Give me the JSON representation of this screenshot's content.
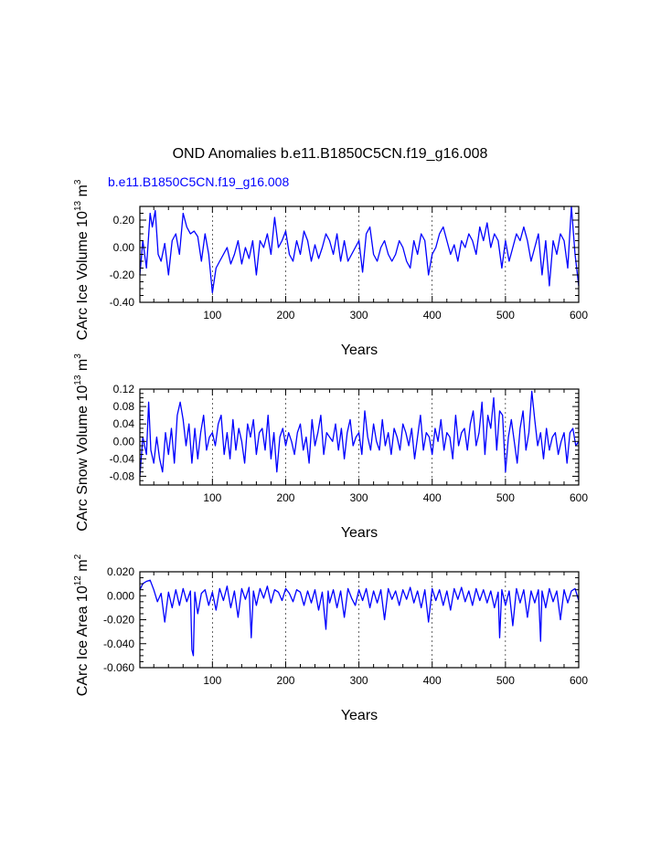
{
  "figure": {
    "title": "OND Anomalies b.e11.B1850C5CN.f19_g16.008",
    "legend_label": "b.e11.B1850C5CN.f19_g16.008",
    "series_color": "#0000ff"
  },
  "chart_data": [
    {
      "type": "line",
      "name": "ice-volume",
      "ylabel": "CArc Ice Volume 10^13 m^3",
      "ylabel_parts": {
        "base": "CArc Ice Volume 10",
        "exp1": "13",
        "mid": " m",
        "exp2": "3"
      },
      "xlabel": "Years",
      "xlim": [
        1,
        600
      ],
      "ylim": [
        -0.4,
        0.3
      ],
      "xticks": [
        100,
        200,
        300,
        400,
        500,
        600
      ],
      "xtick_labels": [
        "100",
        "200",
        "300",
        "400",
        "500",
        "600"
      ],
      "yticks": [
        -0.4,
        -0.2,
        0.0,
        0.2
      ],
      "ytick_labels": [
        "-0.40",
        "-0.20",
        "0.00",
        "0.20"
      ],
      "grid_x_dashed": true,
      "series": [
        {
          "name": "b.e11.B1850C5CN.f19_g16.008",
          "x": [
            1,
            5,
            10,
            15,
            18,
            22,
            26,
            30,
            35,
            40,
            45,
            50,
            55,
            60,
            65,
            70,
            75,
            80,
            85,
            90,
            95,
            100,
            105,
            110,
            115,
            120,
            125,
            130,
            135,
            140,
            145,
            150,
            155,
            160,
            165,
            170,
            175,
            180,
            185,
            190,
            195,
            200,
            205,
            210,
            215,
            220,
            225,
            230,
            235,
            240,
            245,
            250,
            255,
            260,
            265,
            270,
            275,
            280,
            285,
            290,
            295,
            300,
            305,
            310,
            315,
            320,
            325,
            330,
            335,
            340,
            345,
            350,
            355,
            360,
            365,
            370,
            375,
            380,
            385,
            390,
            395,
            400,
            405,
            410,
            415,
            420,
            425,
            430,
            435,
            440,
            445,
            450,
            455,
            460,
            465,
            470,
            475,
            480,
            485,
            490,
            495,
            500,
            505,
            510,
            515,
            520,
            525,
            530,
            535,
            540,
            545,
            550,
            555,
            560,
            565,
            570,
            575,
            580,
            585,
            590,
            595,
            600
          ],
          "values": [
            -0.2,
            0.05,
            -0.15,
            0.25,
            0.15,
            0.27,
            -0.05,
            -0.1,
            0.03,
            -0.2,
            0.05,
            0.1,
            -0.05,
            0.25,
            0.15,
            0.1,
            0.12,
            0.08,
            -0.1,
            0.1,
            -0.05,
            -0.33,
            -0.15,
            -0.1,
            -0.05,
            0.0,
            -0.12,
            -0.05,
            0.05,
            -0.12,
            0.0,
            -0.08,
            0.05,
            -0.2,
            0.05,
            0.0,
            0.1,
            -0.05,
            0.22,
            0.0,
            0.05,
            0.12,
            -0.05,
            -0.1,
            0.05,
            -0.05,
            0.12,
            0.05,
            -0.1,
            0.02,
            -0.08,
            0.0,
            0.1,
            0.05,
            -0.05,
            0.1,
            -0.1,
            0.05,
            -0.1,
            -0.05,
            0.0,
            0.05,
            -0.18,
            0.1,
            0.15,
            -0.05,
            -0.1,
            0.0,
            0.05,
            -0.05,
            -0.1,
            -0.05,
            0.05,
            0.0,
            -0.1,
            -0.15,
            0.05,
            -0.05,
            0.1,
            0.05,
            -0.2,
            -0.05,
            0.0,
            0.1,
            0.15,
            0.05,
            -0.05,
            0.02,
            -0.1,
            0.05,
            0.0,
            0.1,
            0.05,
            -0.05,
            0.15,
            0.05,
            0.18,
            0.0,
            0.1,
            0.05,
            -0.15,
            0.05,
            -0.1,
            0.0,
            0.1,
            0.05,
            0.15,
            0.05,
            -0.1,
            0.0,
            0.1,
            -0.2,
            0.05,
            -0.28,
            0.05,
            -0.05,
            0.1,
            0.05,
            -0.15,
            0.3,
            -0.05,
            -0.28
          ]
        }
      ]
    },
    {
      "type": "line",
      "name": "snow-volume",
      "ylabel": "CArc Snow Volume 10^13 m^3",
      "ylabel_parts": {
        "base": "CArc Snow Volume 10",
        "exp1": "13",
        "mid": " m",
        "exp2": "3"
      },
      "xlabel": "Years",
      "xlim": [
        1,
        600
      ],
      "ylim": [
        -0.1,
        0.12
      ],
      "xticks": [
        100,
        200,
        300,
        400,
        500,
        600
      ],
      "xtick_labels": [
        "100",
        "200",
        "300",
        "400",
        "500",
        "600"
      ],
      "yticks": [
        -0.08,
        -0.04,
        0.0,
        0.04,
        0.08,
        0.12
      ],
      "ytick_labels": [
        "-0.08",
        "-0.04",
        "0.00",
        "0.04",
        "0.08",
        "0.12"
      ],
      "grid_x_dashed": true,
      "series": [
        {
          "name": "b.e11.B1850C5CN.f19_g16.008",
          "x": [
            1,
            5,
            10,
            13,
            16,
            20,
            24,
            28,
            32,
            36,
            40,
            44,
            48,
            52,
            56,
            60,
            64,
            68,
            72,
            76,
            80,
            84,
            88,
            92,
            96,
            100,
            104,
            108,
            112,
            116,
            120,
            124,
            128,
            132,
            136,
            140,
            144,
            148,
            152,
            156,
            160,
            164,
            168,
            172,
            176,
            180,
            184,
            188,
            192,
            196,
            200,
            204,
            208,
            212,
            216,
            220,
            224,
            228,
            232,
            236,
            240,
            244,
            248,
            252,
            256,
            260,
            264,
            268,
            272,
            276,
            280,
            284,
            288,
            292,
            296,
            300,
            304,
            308,
            312,
            316,
            320,
            324,
            328,
            332,
            336,
            340,
            344,
            348,
            352,
            356,
            360,
            364,
            368,
            372,
            376,
            380,
            384,
            388,
            392,
            396,
            400,
            404,
            408,
            412,
            416,
            420,
            424,
            428,
            432,
            436,
            440,
            444,
            448,
            452,
            456,
            460,
            464,
            468,
            472,
            476,
            480,
            484,
            488,
            492,
            496,
            500,
            504,
            508,
            512,
            516,
            520,
            524,
            528,
            532,
            536,
            540,
            544,
            548,
            552,
            556,
            560,
            564,
            568,
            572,
            576,
            580,
            584,
            588,
            592,
            596,
            600
          ],
          "values": [
            -0.08,
            0.01,
            -0.03,
            0.09,
            -0.02,
            -0.05,
            0.01,
            -0.04,
            -0.07,
            0.02,
            -0.03,
            0.03,
            -0.05,
            0.06,
            0.09,
            0.05,
            -0.01,
            0.04,
            -0.05,
            0.03,
            -0.04,
            0.02,
            0.06,
            -0.02,
            0.01,
            0.02,
            -0.01,
            0.04,
            0.06,
            -0.03,
            0.02,
            -0.04,
            0.05,
            -0.02,
            0.03,
            0.0,
            -0.05,
            0.04,
            0.01,
            0.05,
            -0.03,
            0.02,
            0.03,
            -0.02,
            0.06,
            -0.04,
            0.02,
            -0.07,
            0.01,
            0.03,
            -0.01,
            0.02,
            0.0,
            -0.03,
            0.02,
            0.04,
            -0.02,
            0.01,
            -0.05,
            0.05,
            -0.01,
            0.02,
            0.06,
            -0.03,
            0.02,
            0.01,
            0.0,
            0.04,
            -0.02,
            0.03,
            -0.04,
            0.02,
            0.05,
            -0.01,
            0.01,
            0.02,
            -0.03,
            0.07,
            0.01,
            -0.02,
            0.04,
            0.0,
            -0.02,
            0.05,
            -0.01,
            0.02,
            -0.03,
            0.03,
            0.01,
            -0.02,
            0.04,
            0.02,
            -0.01,
            0.03,
            -0.04,
            0.01,
            0.06,
            -0.02,
            0.02,
            0.01,
            -0.03,
            0.03,
            0.0,
            0.05,
            -0.02,
            0.02,
            0.01,
            -0.04,
            0.06,
            -0.01,
            0.02,
            0.03,
            -0.02,
            0.04,
            0.07,
            -0.01,
            0.02,
            0.09,
            -0.03,
            0.06,
            0.03,
            0.1,
            -0.02,
            0.07,
            0.06,
            -0.07,
            0.01,
            0.05,
            0.0,
            -0.05,
            0.03,
            0.07,
            -0.02,
            0.02,
            0.115,
            0.05,
            -0.01,
            0.02,
            -0.04,
            0.03,
            -0.02,
            0.01,
            0.02,
            -0.03,
            0.0,
            0.02,
            -0.05,
            0.02,
            0.03,
            -0.01,
            0.0
          ]
        }
      ]
    },
    {
      "type": "line",
      "name": "ice-area",
      "ylabel": "CArc Ice Area 10^12 m^2",
      "ylabel_parts": {
        "base": "CArc Ice Area 10",
        "exp1": "12",
        "mid": " m",
        "exp2": "2"
      },
      "xlabel": "Years",
      "xlim": [
        1,
        600
      ],
      "ylim": [
        -0.06,
        0.02
      ],
      "xticks": [
        100,
        200,
        300,
        400,
        500,
        600
      ],
      "xtick_labels": [
        "100",
        "200",
        "300",
        "400",
        "500",
        "600"
      ],
      "yticks": [
        -0.06,
        -0.04,
        -0.02,
        0.0,
        0.02
      ],
      "ytick_labels": [
        "-0.060",
        "-0.040",
        "-0.020",
        "0.000",
        "0.020"
      ],
      "grid_x_dashed": true,
      "series": [
        {
          "name": "b.e11.B1850C5CN.f19_g16.008",
          "x": [
            1,
            5,
            10,
            15,
            20,
            25,
            30,
            35,
            40,
            45,
            50,
            55,
            60,
            65,
            70,
            72,
            74,
            76,
            80,
            85,
            90,
            95,
            100,
            105,
            110,
            115,
            120,
            125,
            130,
            135,
            140,
            145,
            150,
            153,
            156,
            160,
            165,
            170,
            175,
            180,
            185,
            190,
            195,
            200,
            205,
            210,
            215,
            220,
            225,
            230,
            235,
            240,
            245,
            250,
            255,
            258,
            260,
            265,
            270,
            275,
            280,
            285,
            290,
            295,
            300,
            305,
            310,
            315,
            320,
            325,
            330,
            335,
            340,
            345,
            350,
            355,
            360,
            365,
            370,
            375,
            380,
            385,
            390,
            395,
            400,
            405,
            410,
            415,
            420,
            425,
            430,
            435,
            440,
            445,
            450,
            455,
            460,
            465,
            470,
            475,
            480,
            485,
            490,
            492,
            495,
            500,
            505,
            510,
            515,
            520,
            525,
            530,
            535,
            540,
            545,
            548,
            550,
            555,
            560,
            565,
            570,
            575,
            580,
            585,
            590,
            595,
            600
          ],
          "values": [
            0.005,
            0.01,
            0.012,
            0.013,
            0.005,
            -0.005,
            0.002,
            -0.022,
            0.003,
            -0.01,
            0.005,
            -0.008,
            0.006,
            -0.005,
            0.004,
            -0.045,
            -0.05,
            0.003,
            -0.015,
            0.002,
            0.005,
            -0.008,
            0.003,
            -0.012,
            0.006,
            -0.004,
            0.008,
            -0.01,
            0.004,
            -0.018,
            0.006,
            -0.003,
            0.007,
            -0.035,
            0.004,
            -0.008,
            0.006,
            -0.002,
            0.008,
            -0.006,
            0.005,
            0.003,
            -0.004,
            0.006,
            0.002,
            -0.005,
            0.005,
            0.003,
            -0.008,
            0.004,
            -0.006,
            0.005,
            -0.012,
            0.003,
            -0.028,
            0.004,
            -0.006,
            0.005,
            -0.01,
            0.004,
            -0.018,
            0.006,
            -0.002,
            -0.008,
            0.005,
            -0.004,
            0.006,
            -0.01,
            0.004,
            -0.006,
            0.005,
            -0.02,
            0.006,
            -0.003,
            0.004,
            -0.008,
            0.005,
            -0.003,
            0.007,
            -0.006,
            0.004,
            -0.01,
            0.005,
            -0.022,
            0.006,
            -0.004,
            0.005,
            -0.008,
            0.004,
            -0.012,
            0.006,
            -0.003,
            0.007,
            -0.005,
            0.004,
            -0.008,
            0.006,
            -0.004,
            0.005,
            -0.006,
            0.004,
            -0.01,
            0.003,
            -0.035,
            0.005,
            -0.008,
            0.004,
            -0.025,
            0.006,
            -0.006,
            0.005,
            -0.018,
            0.004,
            -0.006,
            0.005,
            -0.038,
            0.004,
            -0.01,
            0.006,
            -0.005,
            0.004,
            -0.02,
            0.005,
            -0.006,
            0.004,
            0.006,
            -0.004
          ]
        }
      ]
    }
  ]
}
